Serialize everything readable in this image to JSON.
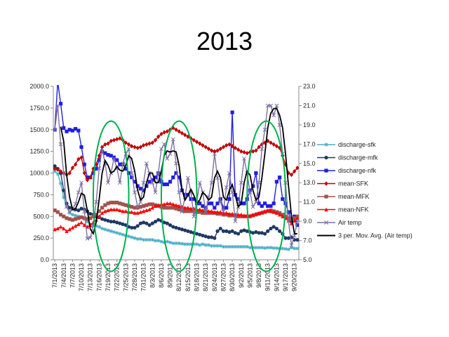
{
  "title": "2013",
  "colors": {
    "discharge_sfk": "#4BACC6",
    "discharge_mfk": "#1F3864",
    "discharge_nfk": "#1F1FE0",
    "mean_sfk": "#C00000",
    "mean_mfk": "#A0524D",
    "mean_nfk": "#FF0000",
    "air_temp": "#7F6FA0",
    "mov_avg": "#000000",
    "ellipse": "#00B050"
  },
  "chart_data": {
    "type": "line",
    "title": "2013",
    "y_left": {
      "min": 0,
      "max": 2000,
      "step": 250,
      "ticks": [
        "0.0",
        "250.0",
        "500.0",
        "750.0",
        "1000.0",
        "1250.0",
        "1500.0",
        "1750.0",
        "2000.0"
      ]
    },
    "y_right": {
      "min": 5,
      "max": 23,
      "step": 2,
      "ticks": [
        "5.0",
        "7.0",
        "9.0",
        "11.0",
        "13.0",
        "15.0",
        "17.0",
        "19.0",
        "21.0",
        "23.0"
      ]
    },
    "x_tick_labels": [
      "7/1/2013",
      "7/4/2013",
      "7/7/2013",
      "7/10/2013",
      "7/13/2013",
      "7/16/2013",
      "7/19/2013",
      "7/22/2013",
      "7/25/2013",
      "7/28/2013",
      "7/31/2013",
      "8/3/2013",
      "8/6/2013",
      "8/9/2013",
      "8/12/2013",
      "8/15/2013",
      "8/18/2013",
      "8/21/2013",
      "8/24/2013",
      "8/27/2013",
      "8/30/2013",
      "9/2/2013",
      "9/5/2013",
      "9/8/2013",
      "9/11/2013",
      "9/14/2013",
      "9/17/2013",
      "9/20/2013"
    ],
    "n_days": 83,
    "series": [
      {
        "name": "discharge-sfk",
        "axis": "left",
        "marker": "star",
        "values": [
          1020,
          990,
          880,
          720,
          610,
          540,
          520,
          510,
          500,
          490,
          470,
          440,
          410,
          400,
          390,
          380,
          360,
          350,
          340,
          330,
          320,
          310,
          300,
          290,
          280,
          270,
          260,
          250,
          240,
          240,
          230,
          230,
          230,
          230,
          220,
          220,
          210,
          200,
          210,
          200,
          190,
          190,
          190,
          185,
          180,
          180,
          180,
          180,
          180,
          170,
          180,
          170,
          170,
          160,
          160,
          160,
          160,
          150,
          150,
          150,
          150,
          150,
          150,
          150,
          150,
          150,
          140,
          140,
          140,
          140,
          140,
          135,
          140,
          140,
          135,
          135,
          130,
          130,
          125,
          120,
          140,
          130,
          130
        ]
      },
      {
        "name": "discharge-mfk",
        "axis": "left",
        "marker": "circle",
        "values": [
          1080,
          1050,
          1000,
          800,
          650,
          600,
          590,
          580,
          570,
          590,
          580,
          560,
          530,
          520,
          500,
          490,
          470,
          460,
          450,
          440,
          440,
          430,
          420,
          410,
          400,
          380,
          370,
          370,
          390,
          420,
          430,
          420,
          400,
          420,
          440,
          460,
          450,
          430,
          420,
          400,
          380,
          370,
          360,
          350,
          340,
          330,
          320,
          310,
          300,
          290,
          280,
          270,
          260,
          260,
          250,
          330,
          360,
          330,
          330,
          320,
          330,
          310,
          300,
          330,
          340,
          330,
          320,
          310,
          320,
          310,
          310,
          300,
          330,
          360,
          380,
          360,
          330,
          300,
          250,
          250,
          260,
          230,
          230
        ]
      },
      {
        "name": "discharge-nfk",
        "axis": "left",
        "marker": "square",
        "values": [
          1500,
          2050,
          1800,
          1520,
          1480,
          1500,
          1490,
          1510,
          1490,
          1300,
          1100,
          950,
          950,
          1000,
          1050,
          1150,
          1250,
          1230,
          1210,
          1200,
          1180,
          1150,
          1100,
          1100,
          1050,
          1000,
          950,
          900,
          850,
          820,
          800,
          850,
          900,
          920,
          950,
          1000,
          900,
          870,
          870,
          900,
          950,
          1000,
          950,
          800,
          750,
          750,
          700,
          700,
          650,
          650,
          620,
          600,
          650,
          650,
          600,
          650,
          700,
          600,
          600,
          700,
          1700,
          750,
          700,
          650,
          650,
          700,
          800,
          850,
          1000,
          650,
          620,
          650,
          620,
          620,
          650,
          900,
          950,
          700,
          650,
          550,
          450,
          500,
          400
        ]
      },
      {
        "name": "mean-SFK",
        "axis": "left",
        "marker": "diamond",
        "values": [
          1050,
          1040,
          1020,
          1000,
          980,
          1000,
          1060,
          1100,
          1160,
          1180,
          1000,
          920,
          950,
          1050,
          1100,
          1200,
          1300,
          1330,
          1340,
          1370,
          1380,
          1390,
          1400,
          1380,
          1350,
          1330,
          1310,
          1300,
          1290,
          1300,
          1320,
          1330,
          1340,
          1350,
          1380,
          1420,
          1450,
          1470,
          1480,
          1500,
          1520,
          1500,
          1480,
          1460,
          1440,
          1420,
          1400,
          1380,
          1360,
          1340,
          1320,
          1300,
          1280,
          1260,
          1250,
          1260,
          1280,
          1300,
          1320,
          1330,
          1310,
          1290,
          1270,
          1250,
          1240,
          1230,
          1240,
          1250,
          1260,
          1300,
          1330,
          1350,
          1370,
          1350,
          1330,
          1310,
          1290,
          1200,
          1100,
          1000,
          980,
          1020,
          1060
        ]
      },
      {
        "name": "mean-MFK",
        "axis": "left",
        "marker": "square",
        "values": [
          570,
          550,
          520,
          500,
          480,
          470,
          460,
          470,
          480,
          490,
          480,
          470,
          480,
          500,
          520,
          560,
          600,
          630,
          650,
          660,
          660,
          660,
          650,
          640,
          630,
          620,
          610,
          600,
          600,
          610,
          620,
          630,
          640,
          640,
          630,
          620,
          610,
          600,
          600,
          600,
          600,
          590,
          580,
          570,
          560,
          560,
          560,
          560,
          550,
          550,
          540,
          540,
          540,
          540,
          540,
          530,
          530,
          520,
          520,
          510,
          510,
          510,
          500,
          500,
          500,
          500,
          500,
          510,
          520,
          530,
          540,
          550,
          560,
          570,
          560,
          550,
          540,
          520,
          500,
          480,
          470,
          480,
          500
        ]
      },
      {
        "name": "mean-NFK",
        "axis": "left",
        "marker": "triangle",
        "values": [
          350,
          360,
          380,
          360,
          330,
          350,
          370,
          390,
          410,
          430,
          400,
          380,
          400,
          430,
          460,
          500,
          540,
          560,
          570,
          580,
          580,
          580,
          570,
          560,
          560,
          550,
          550,
          540,
          540,
          550,
          560,
          570,
          580,
          600,
          620,
          630,
          640,
          640,
          650,
          650,
          640,
          630,
          620,
          610,
          600,
          600,
          590,
          590,
          580,
          580,
          570,
          570,
          560,
          560,
          550,
          550,
          550,
          540,
          540,
          530,
          530,
          520,
          520,
          520,
          510,
          510,
          510,
          520,
          530,
          540,
          550,
          560,
          570,
          560,
          550,
          540,
          520,
          500,
          480,
          460,
          420,
          450,
          480
        ]
      },
      {
        "name": "Air temp",
        "axis": "right",
        "marker": "x",
        "values": [
          18.5,
          21.0,
          17.0,
          14.0,
          10.5,
          10.0,
          10.2,
          10.8,
          12.0,
          13.0,
          10.0,
          7.2,
          7.3,
          8.5,
          11.0,
          14.5,
          16.5,
          15.0,
          13.0,
          14.0,
          15.5,
          14.5,
          13.0,
          15.0,
          16.0,
          16.5,
          14.0,
          12.0,
          10.5,
          11.0,
          13.0,
          15.0,
          14.0,
          13.0,
          12.0,
          14.0,
          16.5,
          17.0,
          15.5,
          16.0,
          17.5,
          15.0,
          12.0,
          10.0,
          11.5,
          13.5,
          12.0,
          9.5,
          11.0,
          13.0,
          12.0,
          10.0,
          11.5,
          13.0,
          16.0,
          13.5,
          11.0,
          10.0,
          12.5,
          14.0,
          12.0,
          9.0,
          10.5,
          13.0,
          15.5,
          14.0,
          12.0,
          10.5,
          11.0,
          13.0,
          16.5,
          18.5,
          21.0,
          21.0,
          20.0,
          21.0,
          19.0,
          16.0,
          13.0,
          9.0,
          6.5,
          7.5,
          9.0
        ]
      },
      {
        "name": "3 per. Mov. Avg. (Air temp)",
        "axis": "right",
        "marker": "none",
        "values": [
          null,
          null,
          18.8,
          17.3,
          13.8,
          11.5,
          10.2,
          10.3,
          11.0,
          11.9,
          11.7,
          10.1,
          8.2,
          7.7,
          8.9,
          11.3,
          14.0,
          15.3,
          14.8,
          14.0,
          14.2,
          14.7,
          14.3,
          14.2,
          14.8,
          15.8,
          15.5,
          14.2,
          12.2,
          11.2,
          11.5,
          13.0,
          14.0,
          14.0,
          13.0,
          13.0,
          14.2,
          15.8,
          16.3,
          16.2,
          16.3,
          16.2,
          14.8,
          12.3,
          11.2,
          11.7,
          12.3,
          11.7,
          10.8,
          11.2,
          12.0,
          11.7,
          11.2,
          11.5,
          13.5,
          14.2,
          13.5,
          11.5,
          11.2,
          12.2,
          12.8,
          11.7,
          10.5,
          10.8,
          13.0,
          14.2,
          13.8,
          12.2,
          11.2,
          11.5,
          13.5,
          16.0,
          18.7,
          20.2,
          20.7,
          20.7,
          20.0,
          18.7,
          16.0,
          12.7,
          9.5,
          7.7,
          7.7
        ]
      }
    ],
    "legend": "right",
    "annotations": [
      {
        "type": "ellipse",
        "label": "",
        "days": [
          13,
          25
        ]
      },
      {
        "type": "ellipse",
        "label": "",
        "days": [
          36,
          48
        ]
      },
      {
        "type": "ellipse",
        "label": "",
        "days": [
          65,
          78
        ]
      }
    ]
  }
}
